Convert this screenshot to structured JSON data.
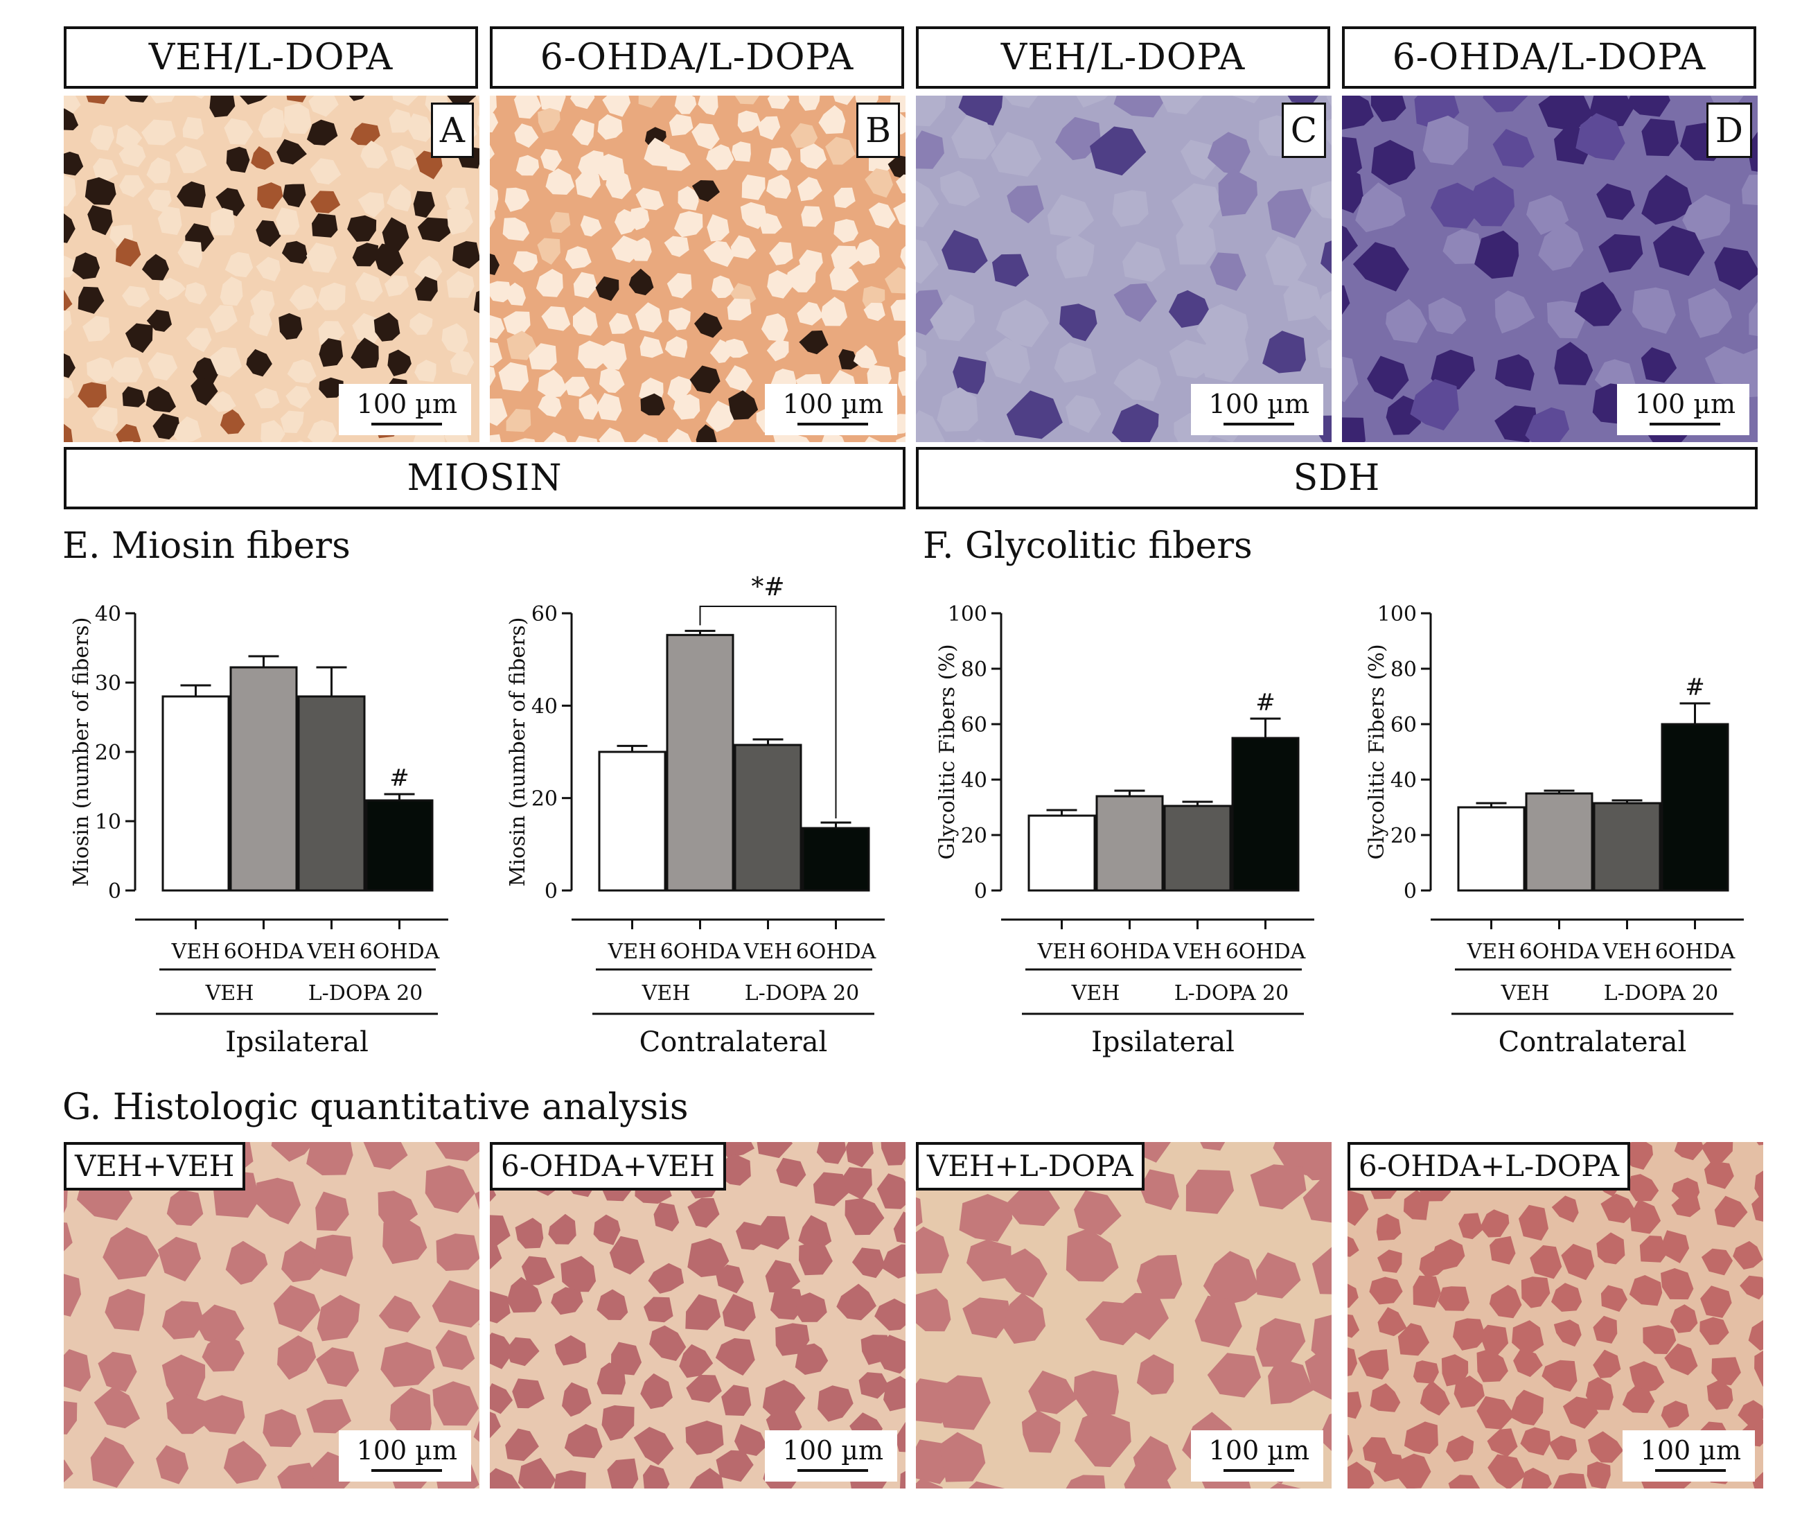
{
  "top_headers": [
    "VEH/L-DOPA",
    "6-OHDA/L-DOPA",
    "VEH/L-DOPA",
    "6-OHDA/L-DOPA"
  ],
  "panel_letters": [
    "A",
    "B",
    "C",
    "D"
  ],
  "scale_label": "100 µm",
  "stain_labels": {
    "miosin": "MIOSIN",
    "sdh": "SDH"
  },
  "section_titles": {
    "e": "E. Miosin fibers",
    "f": "F. Glycolitic fibers",
    "g": "G. Histologic quantitative analysis"
  },
  "g_labels": [
    "VEH+VEH",
    "6-OHDA+VEH",
    "VEH+L-DOPA",
    "6-OHDA+L-DOPA"
  ],
  "stain_colors": {
    "miosin_bg": "#f3d2b3",
    "miosin_fiber": "#2a1a12",
    "miosin_fiber2": "#a4552e",
    "sdh_bg": "#a9a6c6",
    "sdh_fiber": "#4f3f86",
    "sdh_bg_dark": "#7a6ea8",
    "sdh_fiber_dark": "#3a2470",
    "he_bg": "#e8c8b0",
    "he_fiber": "#c4797a"
  },
  "chart_data": [
    {
      "type": "bar",
      "panel": "E",
      "side": "Ipsilateral",
      "ylabel": "Miosin (number of fibers)",
      "ylim": [
        0,
        40
      ],
      "yticks": [
        "0",
        "10",
        "20",
        "30",
        "40"
      ],
      "categories": [
        "VEH",
        "6OHDA",
        "VEH",
        "6OHDA"
      ],
      "groups": [
        "VEH",
        "L-DOPA 20"
      ],
      "values": [
        28,
        32.2,
        28,
        13
      ],
      "errors": [
        1.6,
        1.6,
        4.2,
        0.9
      ],
      "annotations": [
        "",
        "",
        "",
        "#"
      ],
      "bar_colors": [
        "#ffffff",
        "#9a9694",
        "#5a5956",
        "#050c08"
      ]
    },
    {
      "type": "bar",
      "panel": "E",
      "side": "Contralateral",
      "ylabel": "Miosin (number of fibers)",
      "ylim": [
        0,
        60
      ],
      "yticks": [
        "0",
        "20",
        "40",
        "60"
      ],
      "categories": [
        "VEH",
        "6OHDA",
        "VEH",
        "6OHDA"
      ],
      "groups": [
        "VEH",
        "L-DOPA 20"
      ],
      "values": [
        30,
        55.3,
        31.5,
        13.5
      ],
      "errors": [
        1.3,
        0.9,
        1.2,
        1.2
      ],
      "annotations": [
        "",
        "",
        "",
        ""
      ],
      "bracket_label": "*#",
      "bar_colors": [
        "#ffffff",
        "#9a9694",
        "#5a5956",
        "#050c08"
      ]
    },
    {
      "type": "bar",
      "panel": "F",
      "side": "Ipsilateral",
      "ylabel": "Glycolitic Fibers (%)",
      "ylim": [
        0,
        100
      ],
      "yticks": [
        "0",
        "20",
        "40",
        "60",
        "80",
        "100"
      ],
      "categories": [
        "VEH",
        "6OHDA",
        "VEH",
        "6OHDA"
      ],
      "groups": [
        "VEH",
        "L-DOPA 20"
      ],
      "values": [
        27,
        34,
        30.5,
        55
      ],
      "errors": [
        2,
        2,
        1.5,
        7
      ],
      "annotations": [
        "",
        "",
        "",
        "#"
      ],
      "bar_colors": [
        "#ffffff",
        "#9a9694",
        "#5a5956",
        "#050c08"
      ]
    },
    {
      "type": "bar",
      "panel": "F",
      "side": "Contralateral",
      "ylabel": "Glycolitic Fibers (%)",
      "ylim": [
        0,
        100
      ],
      "yticks": [
        "0",
        "20",
        "40",
        "60",
        "80",
        "100"
      ],
      "categories": [
        "VEH",
        "6OHDA",
        "VEH",
        "6OHDA"
      ],
      "groups": [
        "VEH",
        "L-DOPA 20"
      ],
      "values": [
        30,
        35,
        31.5,
        60
      ],
      "errors": [
        1.5,
        1,
        1,
        7.5
      ],
      "annotations": [
        "",
        "",
        "",
        "#"
      ],
      "bar_colors": [
        "#ffffff",
        "#9a9694",
        "#5a5956",
        "#050c08"
      ]
    }
  ]
}
